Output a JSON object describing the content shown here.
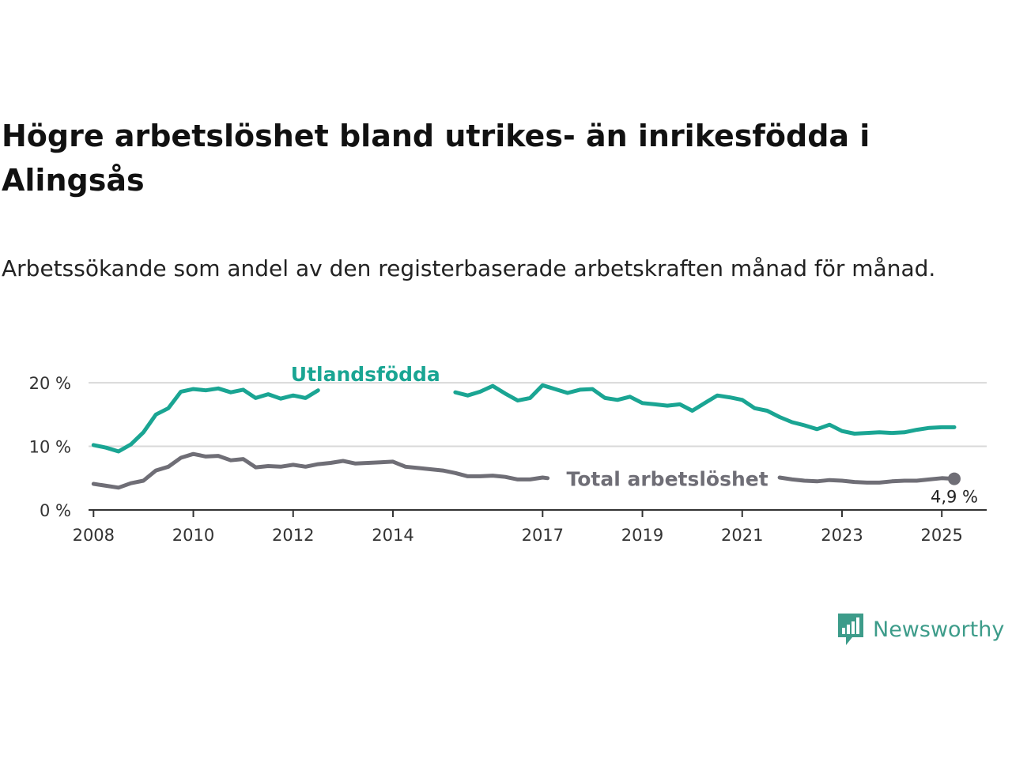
{
  "chart_data": {
    "type": "line",
    "title": "Högre arbetslöshet bland utrikes- än inrikesfödda i Alingsås",
    "subtitle": "Arbetssökande som andel av den registerbaserade arbetskraften månad för månad.",
    "ylim": [
      0,
      22
    ],
    "yticks": [
      0,
      10,
      20
    ],
    "ytick_labels": [
      "0 %",
      "10 %",
      "20 %"
    ],
    "xlim": [
      2007.9,
      2025.9
    ],
    "xticks": [
      2008,
      2010,
      2012,
      2014,
      2017,
      2019,
      2021,
      2023,
      2025
    ],
    "xtick_labels": [
      "2008",
      "2010",
      "2012",
      "2014",
      "2017",
      "2019",
      "2021",
      "2023",
      "2025"
    ],
    "grid": "horizontal",
    "legend": "inline labels",
    "series": [
      {
        "name": "Utlandsfödda",
        "color": "#1aa593",
        "x": [
          2008.0,
          2008.25,
          2008.5,
          2008.75,
          2009.0,
          2009.25,
          2009.5,
          2009.75,
          2010.0,
          2010.25,
          2010.5,
          2010.75,
          2011.0,
          2011.25,
          2011.5,
          2011.75,
          2012.0,
          2012.25,
          2012.5,
          2015.25,
          2015.5,
          2015.75,
          2016.0,
          2016.25,
          2016.5,
          2016.75,
          2017.0,
          2017.25,
          2017.5,
          2017.75,
          2018.0,
          2018.25,
          2018.5,
          2018.75,
          2019.0,
          2019.25,
          2019.5,
          2019.75,
          2020.0,
          2020.25,
          2020.5,
          2020.75,
          2021.0,
          2021.25,
          2021.5,
          2021.75,
          2022.0,
          2022.25,
          2022.5,
          2022.75,
          2023.0,
          2023.25,
          2023.5,
          2023.75,
          2024.0,
          2024.25,
          2024.5,
          2024.75,
          2025.0,
          2025.25
        ],
        "values": [
          10.2,
          9.8,
          9.2,
          10.3,
          12.2,
          15.0,
          16.0,
          18.6,
          19.0,
          18.8,
          19.1,
          18.5,
          18.9,
          17.6,
          18.2,
          17.5,
          18.0,
          17.6,
          18.8,
          18.5,
          18.0,
          18.6,
          19.5,
          18.3,
          17.2,
          17.6,
          19.6,
          19.0,
          18.4,
          18.9,
          19.0,
          17.6,
          17.3,
          17.8,
          16.8,
          16.6,
          16.4,
          16.6,
          15.6,
          16.8,
          18.0,
          17.7,
          17.3,
          16.0,
          15.6,
          14.6,
          13.8,
          13.3,
          12.7,
          13.4,
          12.4,
          12.0,
          12.1,
          12.2,
          12.1,
          12.2,
          12.6,
          12.9,
          13.0,
          13.0
        ]
      },
      {
        "name": "Total arbetslöshet",
        "color": "#6f6e76",
        "x": [
          2008.0,
          2008.25,
          2008.5,
          2008.75,
          2009.0,
          2009.25,
          2009.5,
          2009.75,
          2010.0,
          2010.25,
          2010.5,
          2010.75,
          2011.0,
          2011.25,
          2011.5,
          2011.75,
          2012.0,
          2012.25,
          2012.5,
          2012.75,
          2013.0,
          2013.25,
          2013.5,
          2013.75,
          2014.0,
          2014.25,
          2014.5,
          2014.75,
          2015.0,
          2015.25,
          2015.5,
          2015.75,
          2016.0,
          2016.25,
          2016.5,
          2016.75,
          2017.0,
          2017.1,
          2021.75,
          2022.0,
          2022.25,
          2022.5,
          2022.75,
          2023.0,
          2023.25,
          2023.5,
          2023.75,
          2024.0,
          2024.25,
          2024.5,
          2024.75,
          2025.0,
          2025.25
        ],
        "values": [
          4.1,
          3.8,
          3.5,
          4.2,
          4.6,
          6.2,
          6.8,
          8.2,
          8.8,
          8.4,
          8.5,
          7.8,
          8.0,
          6.7,
          6.9,
          6.8,
          7.1,
          6.8,
          7.2,
          7.4,
          7.7,
          7.3,
          7.4,
          7.5,
          7.6,
          6.8,
          6.6,
          6.4,
          6.2,
          5.8,
          5.3,
          5.3,
          5.4,
          5.2,
          4.8,
          4.8,
          5.1,
          5.0,
          5.1,
          4.8,
          4.6,
          4.5,
          4.7,
          4.6,
          4.4,
          4.3,
          4.3,
          4.5,
          4.6,
          4.6,
          4.8,
          5.0,
          4.9
        ]
      }
    ],
    "series_labels": [
      "Utlandsfödda",
      "Total arbetslöshet"
    ],
    "end_label": "4,9 %"
  },
  "brand": {
    "name": "Newsworthy",
    "color": "#3d9c8a",
    "icon": "bar-chart-speech-bubble-icon"
  }
}
